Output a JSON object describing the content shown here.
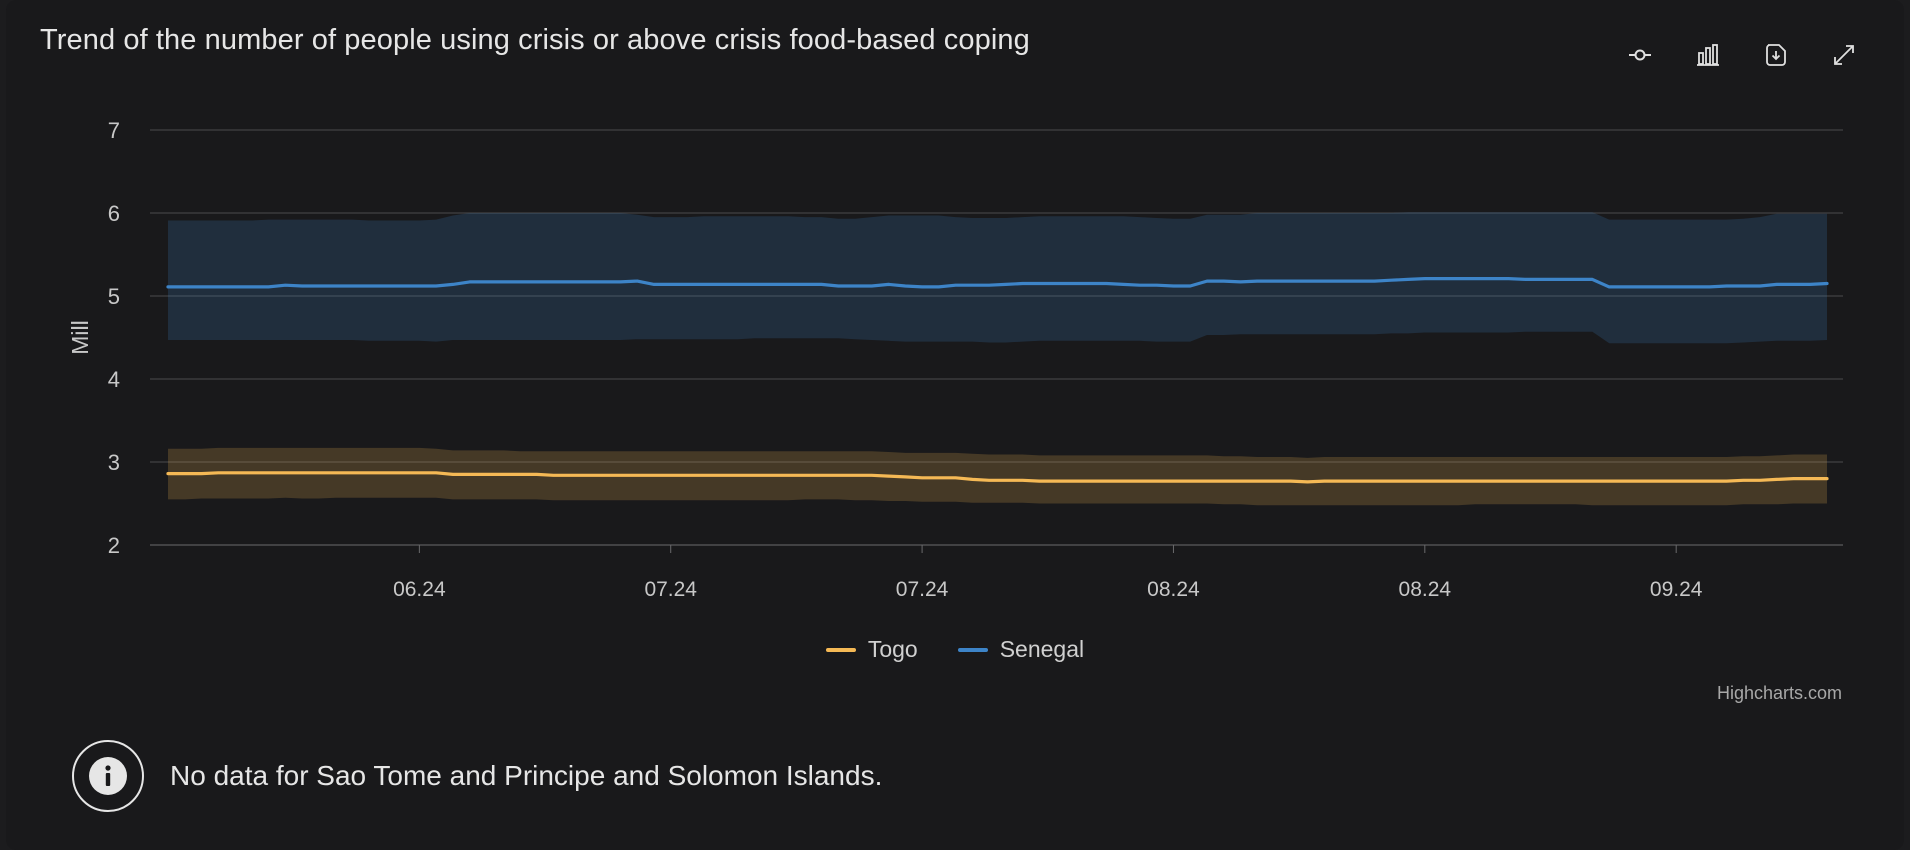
{
  "title": "Trend of the number of people using crisis or above crisis food-based coping",
  "toolbar": {
    "icons": [
      "line-chart-icon",
      "bar-chart-icon",
      "download-icon",
      "fullscreen-icon"
    ]
  },
  "credits": "Highcharts.com",
  "notice": {
    "icon": "info-icon",
    "text": "No data for Sao Tome and Principe and Solomon Islands."
  },
  "colors": {
    "togo": "#f5b955",
    "senegal": "#3d84c8",
    "grid": "#4a4a4c",
    "axis_text": "#c8c8c8"
  },
  "chart_data": {
    "type": "line",
    "ylabel": "Mill",
    "ylim": [
      2,
      7
    ],
    "yticks": [
      2,
      3,
      4,
      5,
      6,
      7
    ],
    "grid": true,
    "legend_placement": "bottom-center",
    "x_tick_labels": [
      "06.24",
      "07.24",
      "07.24",
      "08.24",
      "08.24",
      "09.24"
    ],
    "x_tick_positions": [
      15,
      30,
      45,
      60,
      75,
      90
    ],
    "x_range": [
      0,
      99
    ],
    "series": [
      {
        "name": "Togo",
        "color": "#f5b955",
        "values": [
          2.86,
          2.86,
          2.86,
          2.87,
          2.87,
          2.87,
          2.87,
          2.87,
          2.87,
          2.87,
          2.87,
          2.87,
          2.87,
          2.87,
          2.87,
          2.87,
          2.87,
          2.85,
          2.85,
          2.85,
          2.85,
          2.85,
          2.85,
          2.84,
          2.84,
          2.84,
          2.84,
          2.84,
          2.84,
          2.84,
          2.84,
          2.84,
          2.84,
          2.84,
          2.84,
          2.84,
          2.84,
          2.84,
          2.84,
          2.84,
          2.84,
          2.84,
          2.84,
          2.83,
          2.82,
          2.81,
          2.81,
          2.81,
          2.79,
          2.78,
          2.78,
          2.78,
          2.77,
          2.77,
          2.77,
          2.77,
          2.77,
          2.77,
          2.77,
          2.77,
          2.77,
          2.77,
          2.77,
          2.77,
          2.77,
          2.77,
          2.77,
          2.77,
          2.76,
          2.77,
          2.77,
          2.77,
          2.77,
          2.77,
          2.77,
          2.77,
          2.77,
          2.77,
          2.77,
          2.77,
          2.77,
          2.77,
          2.77,
          2.77,
          2.77,
          2.77,
          2.77,
          2.77,
          2.77,
          2.77,
          2.77,
          2.77,
          2.77,
          2.77,
          2.78,
          2.78,
          2.79,
          2.8,
          2.8,
          2.8
        ],
        "upper": [
          3.16,
          3.16,
          3.16,
          3.17,
          3.17,
          3.17,
          3.17,
          3.17,
          3.17,
          3.17,
          3.17,
          3.17,
          3.17,
          3.17,
          3.17,
          3.17,
          3.16,
          3.14,
          3.14,
          3.14,
          3.14,
          3.13,
          3.13,
          3.13,
          3.13,
          3.13,
          3.13,
          3.13,
          3.13,
          3.13,
          3.13,
          3.13,
          3.13,
          3.13,
          3.13,
          3.13,
          3.13,
          3.13,
          3.13,
          3.13,
          3.13,
          3.13,
          3.13,
          3.12,
          3.11,
          3.11,
          3.11,
          3.11,
          3.1,
          3.09,
          3.09,
          3.09,
          3.08,
          3.08,
          3.08,
          3.08,
          3.08,
          3.08,
          3.08,
          3.08,
          3.08,
          3.08,
          3.08,
          3.07,
          3.07,
          3.06,
          3.06,
          3.06,
          3.05,
          3.06,
          3.06,
          3.06,
          3.06,
          3.06,
          3.06,
          3.06,
          3.06,
          3.06,
          3.06,
          3.06,
          3.06,
          3.06,
          3.06,
          3.06,
          3.06,
          3.06,
          3.06,
          3.06,
          3.06,
          3.06,
          3.06,
          3.06,
          3.06,
          3.06,
          3.07,
          3.07,
          3.08,
          3.09,
          3.09,
          3.09
        ],
        "lower": [
          2.55,
          2.55,
          2.56,
          2.56,
          2.56,
          2.56,
          2.56,
          2.57,
          2.56,
          2.56,
          2.57,
          2.57,
          2.57,
          2.57,
          2.57,
          2.57,
          2.57,
          2.55,
          2.55,
          2.55,
          2.55,
          2.55,
          2.55,
          2.54,
          2.54,
          2.54,
          2.54,
          2.54,
          2.54,
          2.54,
          2.54,
          2.54,
          2.54,
          2.54,
          2.54,
          2.54,
          2.54,
          2.54,
          2.55,
          2.55,
          2.55,
          2.54,
          2.54,
          2.53,
          2.53,
          2.52,
          2.52,
          2.52,
          2.51,
          2.51,
          2.51,
          2.51,
          2.5,
          2.5,
          2.5,
          2.5,
          2.5,
          2.5,
          2.5,
          2.5,
          2.5,
          2.5,
          2.5,
          2.49,
          2.49,
          2.48,
          2.48,
          2.48,
          2.48,
          2.48,
          2.48,
          2.48,
          2.48,
          2.48,
          2.48,
          2.48,
          2.48,
          2.48,
          2.49,
          2.49,
          2.49,
          2.49,
          2.49,
          2.49,
          2.49,
          2.48,
          2.48,
          2.48,
          2.48,
          2.48,
          2.48,
          2.48,
          2.48,
          2.48,
          2.49,
          2.49,
          2.49,
          2.5,
          2.5,
          2.5
        ]
      },
      {
        "name": "Senegal",
        "color": "#3d84c8",
        "values": [
          5.11,
          5.11,
          5.11,
          5.11,
          5.11,
          5.11,
          5.11,
          5.13,
          5.12,
          5.12,
          5.12,
          5.12,
          5.12,
          5.12,
          5.12,
          5.12,
          5.12,
          5.14,
          5.17,
          5.17,
          5.17,
          5.17,
          5.17,
          5.17,
          5.17,
          5.17,
          5.17,
          5.17,
          5.18,
          5.14,
          5.14,
          5.14,
          5.14,
          5.14,
          5.14,
          5.14,
          5.14,
          5.14,
          5.14,
          5.14,
          5.12,
          5.12,
          5.12,
          5.14,
          5.12,
          5.11,
          5.11,
          5.13,
          5.13,
          5.13,
          5.14,
          5.15,
          5.15,
          5.15,
          5.15,
          5.15,
          5.15,
          5.14,
          5.13,
          5.13,
          5.12,
          5.12,
          5.18,
          5.18,
          5.17,
          5.18,
          5.18,
          5.18,
          5.18,
          5.18,
          5.18,
          5.18,
          5.18,
          5.19,
          5.2,
          5.21,
          5.21,
          5.21,
          5.21,
          5.21,
          5.21,
          5.2,
          5.2,
          5.2,
          5.2,
          5.2,
          5.11,
          5.11,
          5.11,
          5.11,
          5.11,
          5.11,
          5.11,
          5.12,
          5.12,
          5.12,
          5.14,
          5.14,
          5.14,
          5.15
        ],
        "upper": [
          5.91,
          5.91,
          5.91,
          5.91,
          5.91,
          5.91,
          5.92,
          5.92,
          5.92,
          5.92,
          5.92,
          5.92,
          5.91,
          5.91,
          5.91,
          5.91,
          5.92,
          5.97,
          6.0,
          6.0,
          6.0,
          6.0,
          6.0,
          6.0,
          6.0,
          6.0,
          6.0,
          6.0,
          5.98,
          5.95,
          5.95,
          5.95,
          5.96,
          5.96,
          5.96,
          5.96,
          5.96,
          5.96,
          5.95,
          5.95,
          5.93,
          5.93,
          5.95,
          5.97,
          5.97,
          5.97,
          5.97,
          5.95,
          5.94,
          5.94,
          5.94,
          5.95,
          5.96,
          5.96,
          5.96,
          5.96,
          5.96,
          5.96,
          5.95,
          5.94,
          5.93,
          5.93,
          5.98,
          5.98,
          5.98,
          6.0,
          6.0,
          6.0,
          6.0,
          6.0,
          6.0,
          6.0,
          6.0,
          6.0,
          6.01,
          6.01,
          6.01,
          6.01,
          6.01,
          6.01,
          6.01,
          6.01,
          6.01,
          6.01,
          6.01,
          6.01,
          5.92,
          5.92,
          5.92,
          5.92,
          5.92,
          5.92,
          5.92,
          5.92,
          5.93,
          5.95,
          5.99,
          5.99,
          5.99,
          5.99
        ],
        "lower": [
          4.47,
          4.47,
          4.47,
          4.47,
          4.47,
          4.47,
          4.47,
          4.47,
          4.47,
          4.47,
          4.47,
          4.47,
          4.46,
          4.46,
          4.46,
          4.46,
          4.45,
          4.47,
          4.47,
          4.47,
          4.47,
          4.47,
          4.47,
          4.47,
          4.47,
          4.47,
          4.47,
          4.47,
          4.48,
          4.48,
          4.48,
          4.48,
          4.48,
          4.48,
          4.48,
          4.49,
          4.49,
          4.49,
          4.49,
          4.49,
          4.49,
          4.48,
          4.47,
          4.46,
          4.45,
          4.45,
          4.45,
          4.45,
          4.45,
          4.44,
          4.44,
          4.45,
          4.46,
          4.46,
          4.46,
          4.46,
          4.46,
          4.46,
          4.46,
          4.45,
          4.45,
          4.45,
          4.53,
          4.53,
          4.54,
          4.54,
          4.54,
          4.54,
          4.54,
          4.54,
          4.54,
          4.54,
          4.54,
          4.55,
          4.55,
          4.56,
          4.56,
          4.56,
          4.56,
          4.56,
          4.56,
          4.57,
          4.57,
          4.57,
          4.57,
          4.57,
          4.43,
          4.43,
          4.43,
          4.43,
          4.43,
          4.43,
          4.43,
          4.43,
          4.44,
          4.45,
          4.46,
          4.46,
          4.46,
          4.47
        ]
      }
    ]
  }
}
